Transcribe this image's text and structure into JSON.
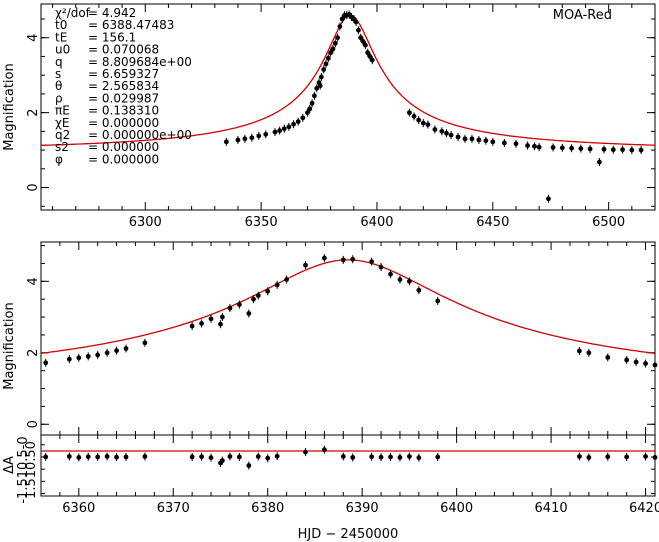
{
  "chart_data": [
    {
      "type": "scatter",
      "panel": "top",
      "title": "MOA-Red",
      "ylabel": "Magnification",
      "xlim": [
        6255,
        6520
      ],
      "ylim": [
        -0.6,
        4.9
      ],
      "xticks": [
        6300,
        6350,
        6400,
        6450,
        6500
      ],
      "yticks": [
        0,
        2,
        4
      ],
      "model": {
        "t0": 6388.47483,
        "tE": 156.1,
        "u0": 0.070068,
        "peak": 4.6,
        "base": 1.0
      },
      "points": [
        [
          6335,
          1.22
        ],
        [
          6340,
          1.27
        ],
        [
          6343,
          1.3
        ],
        [
          6346,
          1.33
        ],
        [
          6349,
          1.38
        ],
        [
          6352,
          1.42
        ],
        [
          6356,
          1.48
        ],
        [
          6358,
          1.52
        ],
        [
          6360,
          1.57
        ],
        [
          6362,
          1.62
        ],
        [
          6364,
          1.69
        ],
        [
          6366,
          1.76
        ],
        [
          6368,
          1.86
        ],
        [
          6370,
          2.0
        ],
        [
          6371,
          2.1
        ],
        [
          6372,
          2.25
        ],
        [
          6373,
          2.45
        ],
        [
          6374,
          2.65
        ],
        [
          6375,
          2.8
        ],
        [
          6375.5,
          2.72
        ],
        [
          6376,
          2.95
        ],
        [
          6377,
          3.15
        ],
        [
          6378,
          3.3
        ],
        [
          6379,
          3.45
        ],
        [
          6380,
          3.6
        ],
        [
          6381,
          3.7
        ],
        [
          6382,
          3.85
        ],
        [
          6383,
          4.0
        ],
        [
          6384,
          4.3
        ],
        [
          6385,
          4.5
        ],
        [
          6386,
          4.6
        ],
        [
          6387,
          4.6
        ],
        [
          6388,
          4.62
        ],
        [
          6389,
          4.55
        ],
        [
          6390,
          4.5
        ],
        [
          6391,
          4.42
        ],
        [
          6392,
          4.2
        ],
        [
          6393,
          4.0
        ],
        [
          6394,
          3.9
        ],
        [
          6395,
          3.8
        ],
        [
          6396,
          3.6
        ],
        [
          6397,
          3.5
        ],
        [
          6398,
          3.4
        ],
        [
          6414,
          2.0
        ],
        [
          6416,
          1.9
        ],
        [
          6418,
          1.8
        ],
        [
          6420,
          1.72
        ],
        [
          6422,
          1.68
        ],
        [
          6425,
          1.55
        ],
        [
          6428,
          1.5
        ],
        [
          6430,
          1.45
        ],
        [
          6432,
          1.4
        ],
        [
          6435,
          1.35
        ],
        [
          6438,
          1.3
        ],
        [
          6441,
          1.3
        ],
        [
          6444,
          1.27
        ],
        [
          6447,
          1.25
        ],
        [
          6450,
          1.22
        ],
        [
          6455,
          1.19
        ],
        [
          6460,
          1.17
        ],
        [
          6465,
          1.12
        ],
        [
          6468,
          1.1
        ],
        [
          6470,
          1.08
        ],
        [
          6474,
          -0.3
        ],
        [
          6476,
          1.07
        ],
        [
          6480,
          1.06
        ],
        [
          6484,
          1.05
        ],
        [
          6488,
          1.04
        ],
        [
          6492,
          1.03
        ],
        [
          6496,
          0.68
        ],
        [
          6498,
          1.02
        ],
        [
          6502,
          1.01
        ],
        [
          6506,
          1.01
        ],
        [
          6510,
          1.0
        ],
        [
          6514,
          1.0
        ]
      ],
      "params": [
        {
          "sym": "χ²/dof",
          "val": "= 4.942"
        },
        {
          "sym": "t0",
          "val": "= 6388.47483"
        },
        {
          "sym": "tE",
          "val": "= 156.1"
        },
        {
          "sym": "u0",
          "val": "= 0.070068"
        },
        {
          "sym": "q",
          "val": "= 8.809684e+00"
        },
        {
          "sym": "s",
          "val": "= 6.659327"
        },
        {
          "sym": "θ",
          "val": "= 2.565834"
        },
        {
          "sym": "ρ",
          "val": "= 0.029987"
        },
        {
          "sym": "πE",
          "val": "= 0.138310"
        },
        {
          "sym": "χE",
          "val": "= 0.000000"
        },
        {
          "sym": "q2",
          "val": "= 0.000000e+00"
        },
        {
          "sym": "s2",
          "val": "= 0.000000"
        },
        {
          "sym": "φ",
          "val": "= 0.000000"
        }
      ]
    },
    {
      "type": "scatter",
      "panel": "middle",
      "ylabel": "Magnification",
      "xlim": [
        6356,
        6421
      ],
      "ylim": [
        -0.3,
        5.1
      ],
      "yticks": [
        0,
        2,
        4
      ],
      "points": [
        [
          6356.5,
          1.72
        ],
        [
          6359,
          1.82
        ],
        [
          6360,
          1.86
        ],
        [
          6361,
          1.9
        ],
        [
          6362,
          1.94
        ],
        [
          6363,
          2.0
        ],
        [
          6364,
          2.06
        ],
        [
          6365,
          2.12
        ],
        [
          6367,
          2.28
        ],
        [
          6372,
          2.75
        ],
        [
          6373,
          2.82
        ],
        [
          6374,
          2.95
        ],
        [
          6375,
          2.8
        ],
        [
          6375.2,
          3.0
        ],
        [
          6376,
          3.25
        ],
        [
          6377,
          3.35
        ],
        [
          6378,
          3.1
        ],
        [
          6378.5,
          3.5
        ],
        [
          6379,
          3.6
        ],
        [
          6380,
          3.72
        ],
        [
          6381,
          3.9
        ],
        [
          6382,
          4.05
        ],
        [
          6384,
          4.45
        ],
        [
          6386,
          4.65
        ],
        [
          6388,
          4.6
        ],
        [
          6389,
          4.62
        ],
        [
          6391,
          4.55
        ],
        [
          6392,
          4.4
        ],
        [
          6393,
          4.2
        ],
        [
          6394,
          4.05
        ],
        [
          6395,
          4.0
        ],
        [
          6396,
          3.75
        ],
        [
          6398,
          3.45
        ],
        [
          6413,
          2.05
        ],
        [
          6414,
          2.0
        ],
        [
          6416,
          1.87
        ],
        [
          6418,
          1.8
        ],
        [
          6419,
          1.74
        ],
        [
          6420,
          1.7
        ],
        [
          6421,
          1.66
        ]
      ]
    },
    {
      "type": "scatter",
      "panel": "residual",
      "ylabel": "ΔA",
      "ytick_labels_overlapped": [
        "1.510.50",
        "-1.510.5-0"
      ],
      "xlabel": "HJD − 2450000",
      "xlim": [
        6356,
        6421
      ],
      "xticks": [
        6360,
        6370,
        6380,
        6390,
        6400,
        6410,
        6420
      ],
      "points": [
        [
          6356.5,
          0.0
        ],
        [
          6359,
          0.02
        ],
        [
          6360,
          -0.02
        ],
        [
          6361,
          0.01
        ],
        [
          6362,
          0.0
        ],
        [
          6363,
          0.02
        ],
        [
          6364,
          -0.01
        ],
        [
          6365,
          0.0
        ],
        [
          6367,
          0.02
        ],
        [
          6372,
          0.0
        ],
        [
          6373,
          0.01
        ],
        [
          6374,
          -0.03
        ],
        [
          6375,
          -0.25
        ],
        [
          6375.2,
          -0.15
        ],
        [
          6376,
          0.02
        ],
        [
          6377,
          0.0
        ],
        [
          6378,
          -0.35
        ],
        [
          6379,
          0.02
        ],
        [
          6380,
          -0.05
        ],
        [
          6381,
          0.03
        ],
        [
          6384,
          0.2
        ],
        [
          6386,
          0.3
        ],
        [
          6388,
          0.02
        ],
        [
          6389,
          -0.02
        ],
        [
          6391,
          0.01
        ],
        [
          6392,
          -0.01
        ],
        [
          6393,
          0.0
        ],
        [
          6394,
          -0.02
        ],
        [
          6395,
          0.02
        ],
        [
          6396,
          -0.03
        ],
        [
          6398,
          0.0
        ],
        [
          6413,
          0.02
        ],
        [
          6414,
          -0.02
        ],
        [
          6416,
          0.01
        ],
        [
          6418,
          0.0
        ],
        [
          6420,
          0.02
        ],
        [
          6421,
          -0.02
        ]
      ]
    }
  ],
  "labels": {
    "top_title": "MOA-Red",
    "ylabel": "Magnification",
    "xlabel": "HJD − 2450000",
    "res_ylabel": "ΔA",
    "res_tick1": "1.510.50",
    "res_tick2": "-1.510.5-0"
  }
}
